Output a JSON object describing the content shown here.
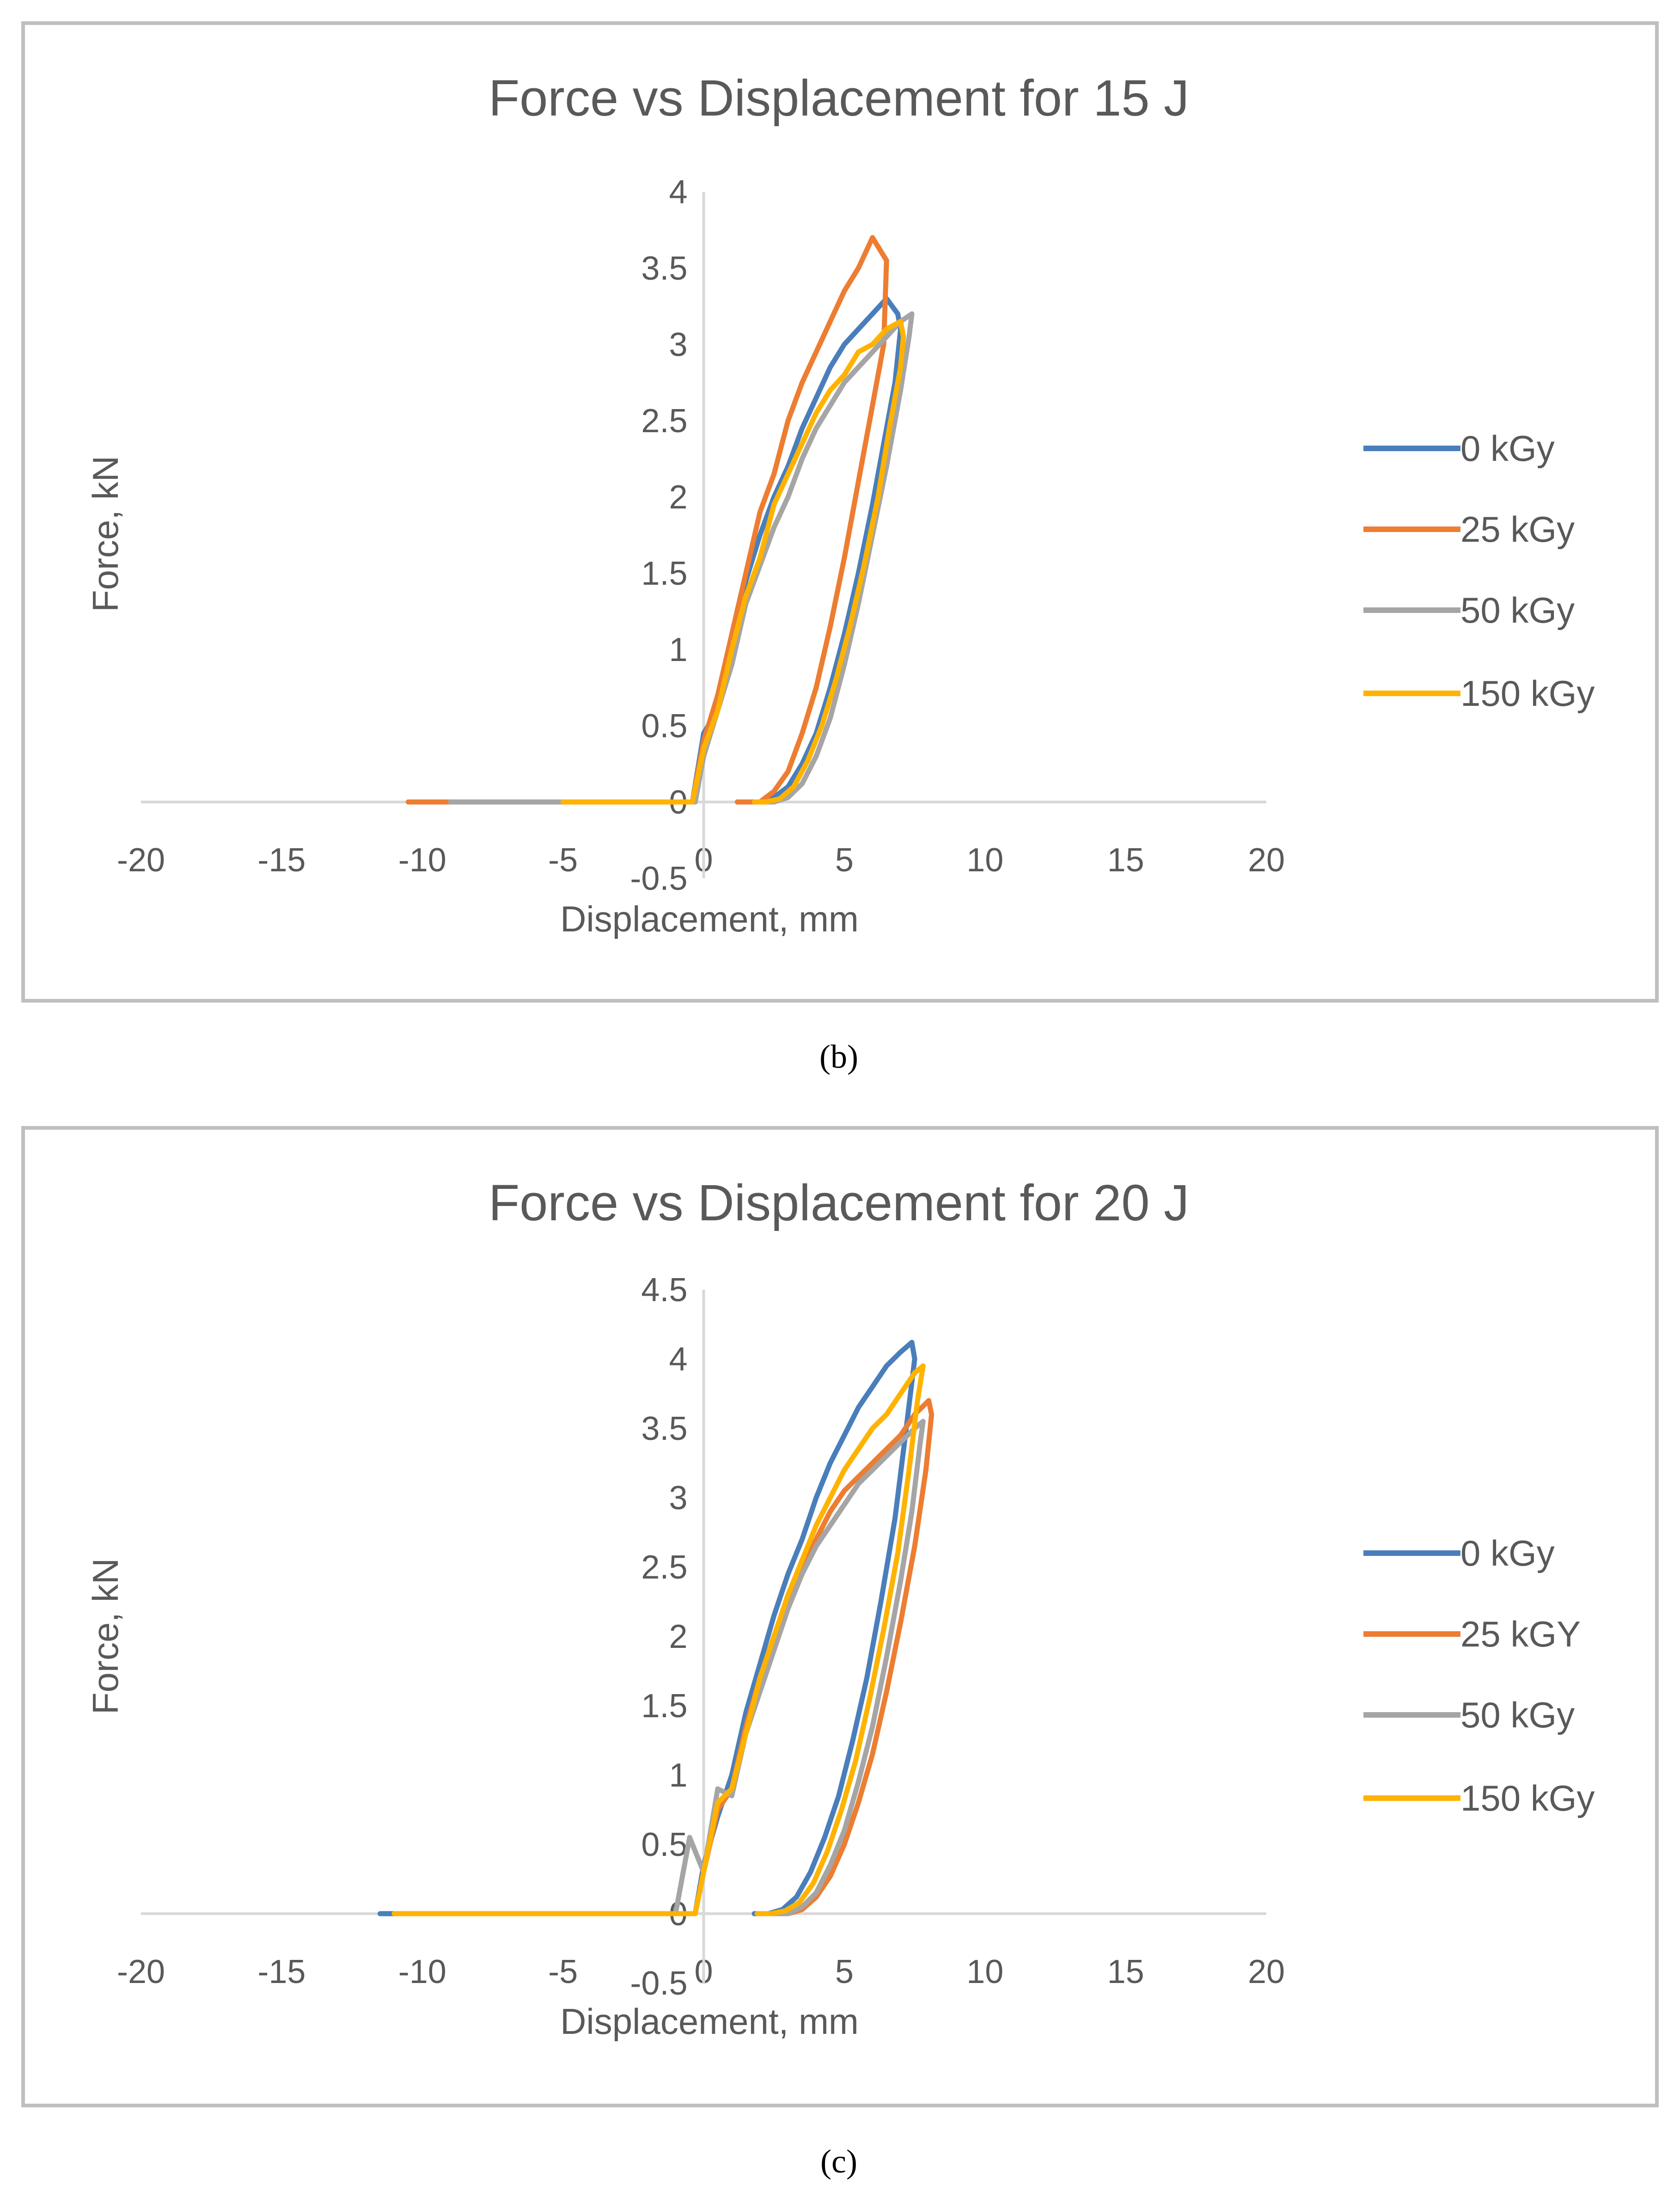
{
  "colors": {
    "series_0_kgy": "#4a7ebb",
    "series_25_kgy": "#ed7d31",
    "series_50_kgy": "#a5a5a5",
    "series_150_kgy": "#ffb300",
    "axis": "#d9d9d9",
    "frame": "#bfbfbf"
  },
  "chart_data": [
    {
      "type": "line",
      "title": "Force vs Displacement for 15 J",
      "xlabel": "Displacement, mm",
      "ylabel": "Force, kN",
      "xlim": [
        -20,
        20
      ],
      "ylim": [
        -0.5,
        4
      ],
      "x_ticks": [
        "-20",
        "-15",
        "-10",
        "-5",
        "0",
        "5",
        "10",
        "15",
        "20"
      ],
      "y_ticks": [
        "-0.5",
        "0",
        "0.5",
        "1",
        "1.5",
        "2",
        "2.5",
        "3",
        "3.5",
        "4"
      ],
      "grid": false,
      "legend_position": "right",
      "caption": "(b)",
      "series": [
        {
          "name": "0 kGy",
          "color_key": "series_0_kgy",
          "x": [
            -9.5,
            -5,
            -1,
            -0.4,
            0,
            0.5,
            1,
            1.5,
            2,
            2.5,
            3,
            3.5,
            4,
            4.5,
            5,
            5.5,
            6,
            6.5,
            6.9,
            7.0,
            6.8,
            6.4,
            6.0,
            5.5,
            5.0,
            4.5,
            4.0,
            3.5,
            3.0,
            2.5,
            2.0,
            1.5,
            1.2
          ],
          "y": [
            0,
            0,
            0,
            0,
            0.45,
            0.6,
            1.0,
            1.45,
            1.75,
            2.0,
            2.2,
            2.45,
            2.65,
            2.85,
            3.0,
            3.1,
            3.2,
            3.3,
            3.2,
            3.1,
            2.75,
            2.35,
            1.95,
            1.5,
            1.1,
            0.75,
            0.45,
            0.25,
            0.1,
            0.03,
            0.0,
            0.0,
            0.0
          ]
        },
        {
          "name": "25 kGy",
          "color_key": "series_25_kgy",
          "x": [
            -10.5,
            -5,
            -1,
            -0.4,
            0,
            0.5,
            1,
            1.5,
            2,
            2.5,
            3,
            3.5,
            4,
            4.5,
            5,
            5.5,
            6,
            6.5,
            6.4,
            6.0,
            5.5,
            5.0,
            4.5,
            4.0,
            3.5,
            3.0,
            2.5,
            2.0,
            1.5,
            1.2
          ],
          "y": [
            0,
            0,
            0,
            0,
            0.4,
            0.7,
            1.1,
            1.5,
            1.9,
            2.15,
            2.5,
            2.75,
            2.95,
            3.15,
            3.35,
            3.5,
            3.7,
            3.55,
            3.0,
            2.6,
            2.1,
            1.6,
            1.15,
            0.75,
            0.45,
            0.2,
            0.07,
            0.0,
            0.0,
            0.0
          ]
        },
        {
          "name": "50 kGy",
          "color_key": "series_50_kgy",
          "x": [
            -9.0,
            -5,
            -1,
            -0.3,
            0,
            0.5,
            1,
            1.5,
            2,
            2.5,
            3,
            3.5,
            4,
            4.5,
            5,
            5.5,
            6,
            6.5,
            7,
            7.4,
            7.3,
            7.0,
            6.5,
            6.0,
            5.5,
            5.0,
            4.5,
            4.0,
            3.5,
            3.0,
            2.5,
            2.2
          ],
          "y": [
            0,
            0,
            0,
            0,
            0.3,
            0.6,
            0.9,
            1.3,
            1.55,
            1.8,
            2.0,
            2.25,
            2.45,
            2.6,
            2.75,
            2.85,
            2.95,
            3.05,
            3.15,
            3.2,
            3.05,
            2.7,
            2.2,
            1.75,
            1.3,
            0.9,
            0.55,
            0.3,
            0.12,
            0.03,
            0.0,
            0.0
          ]
        },
        {
          "name": "150 kGy",
          "color_key": "series_150_kgy",
          "x": [
            -5,
            -1,
            -0.4,
            0,
            0.5,
            1,
            1.5,
            2,
            2.5,
            3,
            3.5,
            4,
            4.5,
            5,
            5.5,
            6,
            6.5,
            7,
            7.1,
            7.0,
            6.6,
            6.2,
            5.7,
            5.2,
            4.7,
            4.2,
            3.7,
            3.2,
            2.7,
            2.2,
            1.8
          ],
          "y": [
            0,
            0,
            0,
            0.35,
            0.6,
            1.0,
            1.35,
            1.6,
            1.95,
            2.15,
            2.35,
            2.55,
            2.7,
            2.8,
            2.95,
            3.0,
            3.1,
            3.15,
            3.05,
            2.85,
            2.45,
            2.0,
            1.55,
            1.15,
            0.8,
            0.5,
            0.27,
            0.1,
            0.02,
            0.0,
            0.0
          ]
        }
      ]
    },
    {
      "type": "line",
      "title": "Force vs Displacement for 20 J",
      "xlabel": "Displacement, mm",
      "ylabel": "Force, kN",
      "xlim": [
        -20,
        20
      ],
      "ylim": [
        -0.5,
        4.5
      ],
      "x_ticks": [
        "-20",
        "-15",
        "-10",
        "-5",
        "0",
        "5",
        "10",
        "15",
        "20"
      ],
      "y_ticks": [
        "-0.5",
        "0",
        "0.5",
        "1",
        "1.5",
        "2",
        "2.5",
        "3",
        "3.5",
        "4",
        "4.5"
      ],
      "grid": false,
      "legend_position": "right",
      "caption": "(c)",
      "series": [
        {
          "name": "0 kGy",
          "color_key": "series_0_kgy",
          "x": [
            -11.5,
            -5,
            -1,
            -0.3,
            0,
            0.5,
            1,
            1.5,
            2,
            2.5,
            3,
            3.5,
            4,
            4.5,
            5,
            5.5,
            6,
            6.5,
            7,
            7.4,
            7.5,
            7.2,
            6.8,
            6.3,
            5.8,
            5.3,
            4.8,
            4.3,
            3.8,
            3.3,
            2.8,
            2.3,
            1.8
          ],
          "y": [
            0,
            0,
            0,
            0,
            0.35,
            0.7,
            1.0,
            1.45,
            1.8,
            2.15,
            2.45,
            2.7,
            3.0,
            3.25,
            3.45,
            3.65,
            3.8,
            3.95,
            4.05,
            4.12,
            4.0,
            3.5,
            2.85,
            2.25,
            1.7,
            1.25,
            0.85,
            0.55,
            0.3,
            0.12,
            0.03,
            0.0,
            0.0
          ]
        },
        {
          "name": "25 kGY",
          "color_key": "series_25_kgy",
          "x": [
            -10,
            -5,
            -1,
            -0.3,
            0,
            0.5,
            1,
            1.5,
            2,
            2.5,
            3,
            3.5,
            4,
            4.5,
            5,
            5.5,
            6,
            6.5,
            7,
            7.5,
            8.0,
            8.1,
            7.9,
            7.5,
            7.0,
            6.5,
            6.0,
            5.5,
            5.0,
            4.5,
            4.0,
            3.5,
            3.0,
            2.5
          ],
          "y": [
            0,
            0,
            0,
            0,
            0.3,
            0.75,
            0.9,
            1.35,
            1.7,
            2.0,
            2.25,
            2.5,
            2.7,
            2.9,
            3.05,
            3.15,
            3.25,
            3.35,
            3.45,
            3.6,
            3.7,
            3.6,
            3.2,
            2.65,
            2.1,
            1.6,
            1.15,
            0.8,
            0.5,
            0.27,
            0.12,
            0.03,
            0.0,
            0.0
          ]
        },
        {
          "name": "50 kGy",
          "color_key": "series_50_kgy",
          "x": [
            -9.5,
            -5,
            -1,
            -0.5,
            0,
            0.5,
            1,
            1.5,
            2,
            2.5,
            3,
            3.5,
            4,
            4.5,
            5,
            5.5,
            6,
            6.5,
            7,
            7.5,
            7.8,
            7.7,
            7.4,
            7.0,
            6.5,
            6.0,
            5.5,
            5.0,
            4.5,
            4.0,
            3.5,
            3.0,
            2.5,
            2.0
          ],
          "y": [
            0,
            0,
            0,
            0.55,
            0.3,
            0.9,
            0.85,
            1.3,
            1.6,
            1.9,
            2.2,
            2.45,
            2.65,
            2.8,
            2.95,
            3.1,
            3.2,
            3.3,
            3.4,
            3.5,
            3.55,
            3.4,
            2.9,
            2.4,
            1.85,
            1.35,
            0.95,
            0.6,
            0.35,
            0.15,
            0.05,
            0.0,
            0.0,
            0.0
          ]
        },
        {
          "name": "150 kGy",
          "color_key": "series_150_kgy",
          "x": [
            -11,
            -5,
            -1,
            -0.3,
            0,
            0.5,
            1,
            1.5,
            2,
            2.5,
            3,
            3.5,
            4,
            4.5,
            5,
            5.5,
            6,
            6.5,
            7,
            7.5,
            7.8,
            7.6,
            7.3,
            6.9,
            6.4,
            5.9,
            5.4,
            4.9,
            4.4,
            3.9,
            3.4,
            2.9,
            2.4,
            1.9
          ],
          "y": [
            0,
            0,
            0,
            0,
            0.3,
            0.8,
            0.9,
            1.3,
            1.7,
            2.0,
            2.3,
            2.55,
            2.8,
            3.0,
            3.2,
            3.35,
            3.5,
            3.6,
            3.75,
            3.9,
            3.95,
            3.7,
            3.2,
            2.6,
            2.05,
            1.55,
            1.1,
            0.75,
            0.45,
            0.22,
            0.08,
            0.02,
            0.0,
            0.0
          ]
        }
      ]
    }
  ]
}
